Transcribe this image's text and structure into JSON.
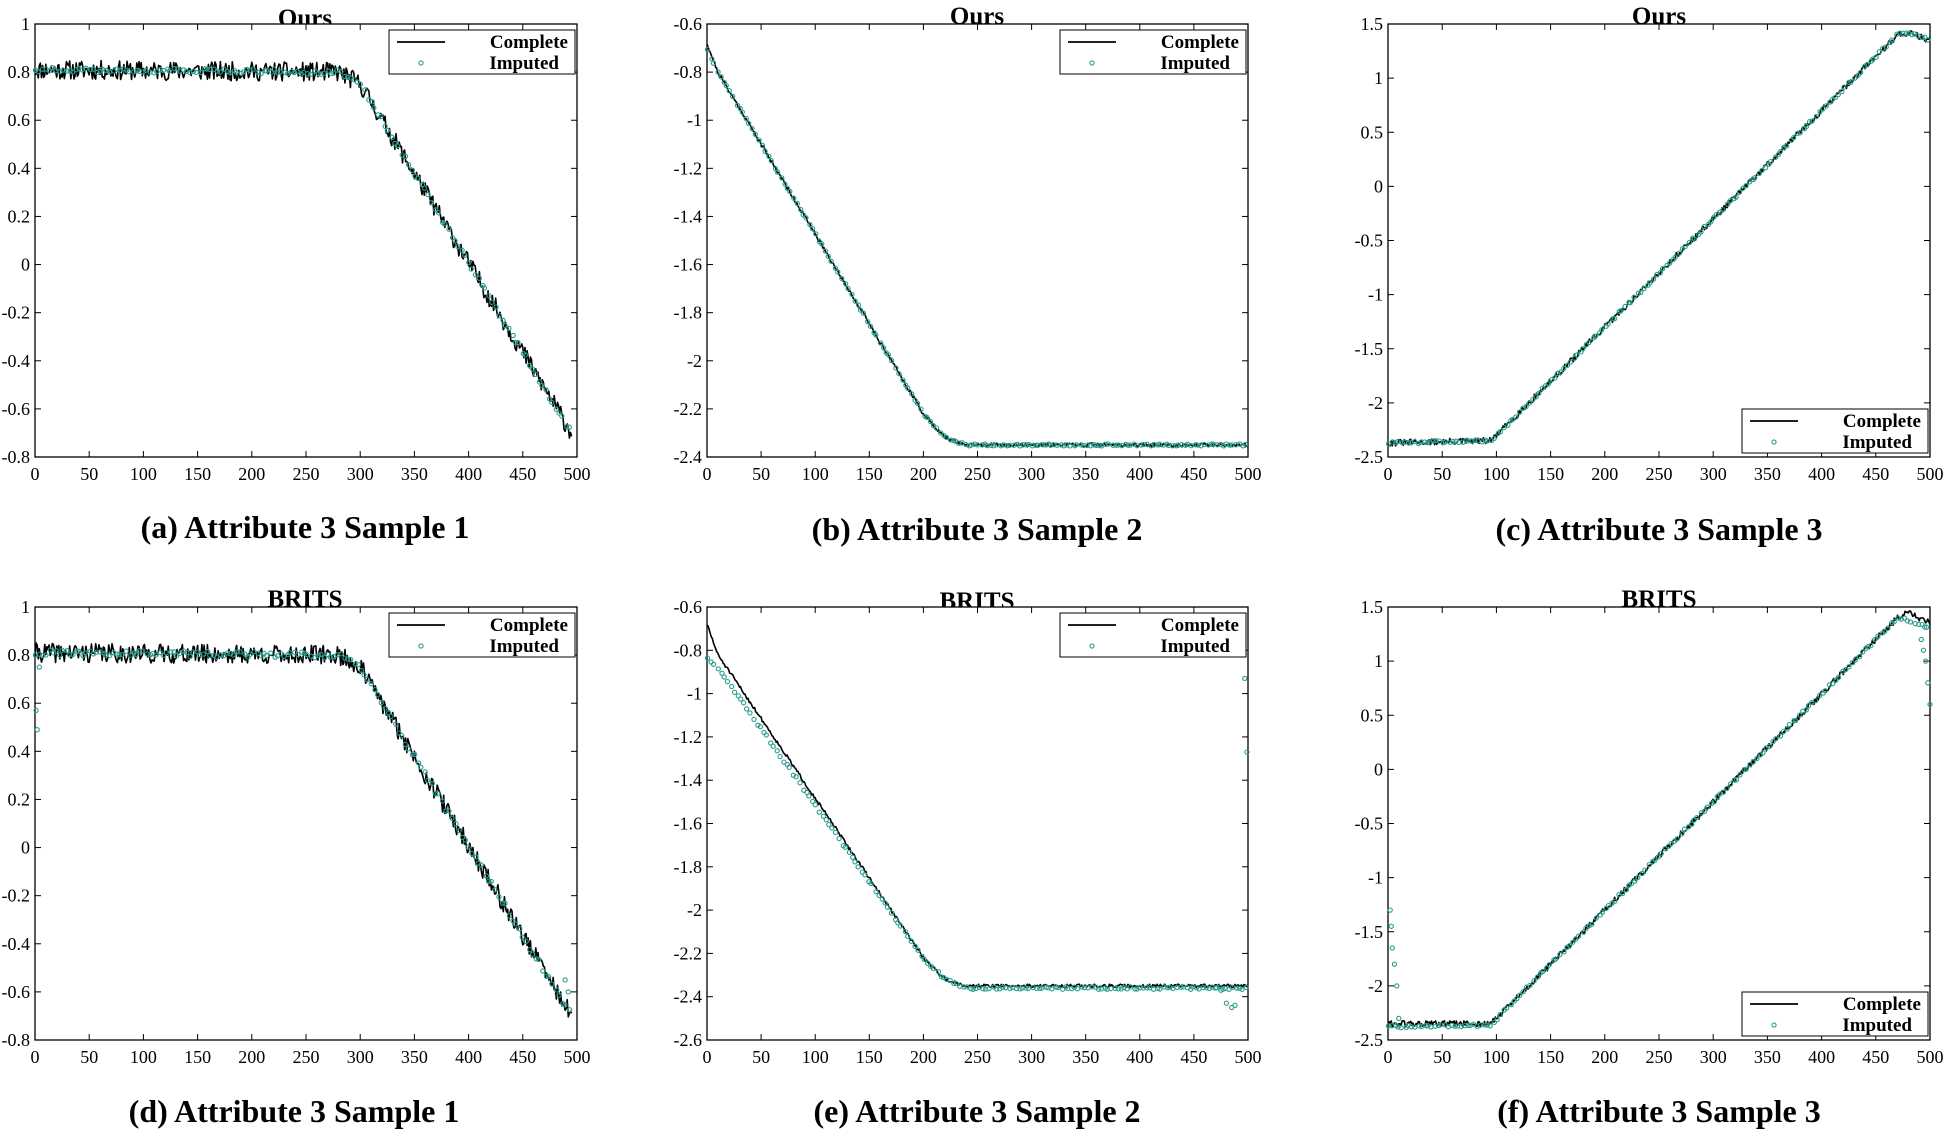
{
  "chart_data": [
    {
      "type": "line",
      "title": "Ours",
      "caption": "(a) Attribute 3 Sample 1",
      "xlim": [
        0,
        500
      ],
      "ylim": [
        -0.8,
        1
      ],
      "xticks": [
        0,
        50,
        100,
        150,
        200,
        250,
        300,
        350,
        400,
        450,
        500
      ],
      "xtick_labels": [
        "0",
        "50",
        "100",
        "150",
        "200",
        "250",
        "300",
        "350",
        "400",
        "450",
        "500"
      ],
      "yticks": [
        -0.8,
        -0.6,
        -0.4,
        -0.2,
        0,
        0.2,
        0.4,
        0.6,
        0.8,
        1
      ],
      "ytick_labels": [
        "-0.8",
        "-0.6",
        "-0.4",
        "-0.2",
        "0",
        "0.2",
        "0.4",
        "0.6",
        "0.8",
        "1"
      ],
      "legend": {
        "position": "top-right",
        "labels": [
          "Complete",
          "Imputed"
        ]
      },
      "series": [
        {
          "name": "Complete",
          "style": "line",
          "color": "#000000",
          "noise": 0.04,
          "seed": 11,
          "x": [
            0,
            280,
            300,
            495
          ],
          "y": [
            0.81,
            0.8,
            0.75,
            -0.7
          ]
        },
        {
          "name": "Imputed",
          "style": "markers",
          "color": "#2a9d8f",
          "noise": 0.01,
          "seed": 12,
          "n": 160,
          "x": [
            0,
            280,
            300,
            495
          ],
          "y": [
            0.81,
            0.8,
            0.75,
            -0.7
          ]
        }
      ]
    },
    {
      "type": "line",
      "title": "Ours",
      "caption": "(b) Attribute 3 Sample 2",
      "xlim": [
        0,
        500
      ],
      "ylim": [
        -2.4,
        -0.6
      ],
      "xticks": [
        0,
        50,
        100,
        150,
        200,
        250,
        300,
        350,
        400,
        450,
        500
      ],
      "xtick_labels": [
        "0",
        "50",
        "100",
        "150",
        "200",
        "250",
        "300",
        "350",
        "400",
        "450",
        "500"
      ],
      "yticks": [
        -2.4,
        -2.2,
        -2,
        -1.8,
        -1.6,
        -1.4,
        -1.2,
        -1,
        -0.8,
        -0.6
      ],
      "ytick_labels": [
        "-2.4",
        "-2.2",
        "-2",
        "-1.8",
        "-1.6",
        "-1.4",
        "-1.2",
        "-1",
        "-0.8",
        "-0.6"
      ],
      "legend": {
        "position": "top-right",
        "labels": [
          "Complete",
          "Imputed"
        ]
      },
      "series": [
        {
          "name": "Complete",
          "style": "line",
          "color": "#000000",
          "noise": 0.008,
          "seed": 21,
          "x": [
            0,
            10,
            200,
            220,
            240,
            500
          ],
          "y": [
            -0.68,
            -0.8,
            -2.22,
            -2.32,
            -2.35,
            -2.35
          ]
        },
        {
          "name": "Imputed",
          "style": "markers",
          "color": "#2a9d8f",
          "noise": 0.004,
          "seed": 22,
          "n": 170,
          "x": [
            0,
            10,
            200,
            220,
            240,
            500
          ],
          "y": [
            -0.7,
            -0.8,
            -2.22,
            -2.32,
            -2.35,
            -2.35
          ]
        }
      ]
    },
    {
      "type": "line",
      "title": "Ours",
      "caption": "(c) Attribute 3 Sample 3",
      "xlim": [
        0,
        500
      ],
      "ylim": [
        -2.5,
        1.5
      ],
      "xticks": [
        0,
        50,
        100,
        150,
        200,
        250,
        300,
        350,
        400,
        450,
        500
      ],
      "xtick_labels": [
        "0",
        "50",
        "100",
        "150",
        "200",
        "250",
        "300",
        "350",
        "400",
        "450",
        "500"
      ],
      "yticks": [
        -2.5,
        -2,
        -1.5,
        -1,
        -0.5,
        0,
        0.5,
        1,
        1.5
      ],
      "ytick_labels": [
        "-2.5",
        "-2",
        "-1.5",
        "-1",
        "-0.5",
        "0",
        "0.5",
        "1",
        "1.5"
      ],
      "legend": {
        "position": "bottom-right",
        "labels": [
          "Complete",
          "Imputed"
        ]
      },
      "series": [
        {
          "name": "Complete",
          "style": "line",
          "color": "#000000",
          "noise": 0.03,
          "seed": 31,
          "x": [
            0,
            95,
            110,
            470,
            480,
            500
          ],
          "y": [
            -2.37,
            -2.35,
            -2.2,
            1.4,
            1.42,
            1.35
          ]
        },
        {
          "name": "Imputed",
          "style": "markers",
          "color": "#2a9d8f",
          "noise": 0.012,
          "seed": 32,
          "n": 170,
          "x": [
            0,
            95,
            110,
            470,
            480,
            500
          ],
          "y": [
            -2.37,
            -2.35,
            -2.2,
            1.4,
            1.42,
            1.35
          ]
        }
      ]
    },
    {
      "type": "line",
      "title": "BRITS",
      "caption": "(d) Attribute 3 Sample 1",
      "xlim": [
        0,
        500
      ],
      "ylim": [
        -0.8,
        1
      ],
      "xticks": [
        0,
        50,
        100,
        150,
        200,
        250,
        300,
        350,
        400,
        450,
        500
      ],
      "xtick_labels": [
        "0",
        "50",
        "100",
        "150",
        "200",
        "250",
        "300",
        "350",
        "400",
        "450",
        "500"
      ],
      "yticks": [
        -0.8,
        -0.6,
        -0.4,
        -0.2,
        0,
        0.2,
        0.4,
        0.6,
        0.8,
        1
      ],
      "ytick_labels": [
        "-0.8",
        "-0.6",
        "-0.4",
        "-0.2",
        "0",
        "0.2",
        "0.4",
        "0.6",
        "0.8",
        "1"
      ],
      "legend": {
        "position": "top-right",
        "labels": [
          "Complete",
          "Imputed"
        ]
      },
      "series": [
        {
          "name": "Complete",
          "style": "line",
          "color": "#000000",
          "noise": 0.04,
          "seed": 41,
          "x": [
            0,
            280,
            300,
            495
          ],
          "y": [
            0.81,
            0.8,
            0.75,
            -0.7
          ]
        },
        {
          "name": "Imputed",
          "style": "markers",
          "color": "#2a9d8f",
          "noise": 0.012,
          "seed": 42,
          "n": 160,
          "x": [
            0,
            280,
            300,
            495
          ],
          "y": [
            0.81,
            0.8,
            0.75,
            -0.7
          ],
          "extra_x": [
            1,
            2,
            4,
            489,
            492
          ],
          "extra_y": [
            0.57,
            0.49,
            0.75,
            -0.55,
            -0.6
          ]
        }
      ]
    },
    {
      "type": "line",
      "title": "BRITS",
      "caption": "(e) Attribute 3 Sample 2",
      "xlim": [
        0,
        500
      ],
      "ylim": [
        -2.6,
        -0.6
      ],
      "xticks": [
        0,
        50,
        100,
        150,
        200,
        250,
        300,
        350,
        400,
        450,
        500
      ],
      "xtick_labels": [
        "0",
        "50",
        "100",
        "150",
        "200",
        "250",
        "300",
        "350",
        "400",
        "450",
        "500"
      ],
      "yticks": [
        -2.6,
        -2.4,
        -2.2,
        -2,
        -1.8,
        -1.6,
        -1.4,
        -1.2,
        -1,
        -0.8,
        -0.6
      ],
      "ytick_labels": [
        "-2.6",
        "-2.4",
        "-2.2",
        "-2",
        "-1.8",
        "-1.6",
        "-1.4",
        "-1.2",
        "-1",
        "-0.8",
        "-0.6"
      ],
      "legend": {
        "position": "top-right",
        "labels": [
          "Complete",
          "Imputed"
        ]
      },
      "series": [
        {
          "name": "Complete",
          "style": "line",
          "color": "#000000",
          "noise": 0.008,
          "seed": 51,
          "x": [
            0,
            10,
            200,
            220,
            240,
            500
          ],
          "y": [
            -0.68,
            -0.82,
            -2.22,
            -2.32,
            -2.35,
            -2.35
          ]
        },
        {
          "name": "Imputed",
          "style": "markers",
          "color": "#2a9d8f",
          "noise": 0.006,
          "seed": 52,
          "n": 165,
          "x": [
            0,
            10,
            200,
            220,
            240,
            500
          ],
          "y": [
            -0.84,
            -0.88,
            -2.22,
            -2.32,
            -2.36,
            -2.36
          ],
          "extra_x": [
            470,
            475,
            480,
            485,
            488,
            497,
            499
          ],
          "extra_y": [
            -2.36,
            -2.37,
            -2.43,
            -2.45,
            -2.44,
            -0.93,
            -1.27
          ]
        }
      ]
    },
    {
      "type": "line",
      "title": "BRITS",
      "caption": "(f) Attribute 3 Sample 3",
      "xlim": [
        0,
        500
      ],
      "ylim": [
        -2.5,
        1.5
      ],
      "xticks": [
        0,
        50,
        100,
        150,
        200,
        250,
        300,
        350,
        400,
        450,
        500
      ],
      "xtick_labels": [
        "0",
        "50",
        "100",
        "150",
        "200",
        "250",
        "300",
        "350",
        "400",
        "450",
        "500"
      ],
      "yticks": [
        -2.5,
        -2,
        -1.5,
        -1,
        -0.5,
        0,
        0.5,
        1,
        1.5
      ],
      "ytick_labels": [
        "-2.5",
        "-2",
        "-1.5",
        "-1",
        "-0.5",
        "0",
        "0.5",
        "1",
        "1.5"
      ],
      "legend": {
        "position": "bottom-right",
        "labels": [
          "Complete",
          "Imputed"
        ]
      },
      "series": [
        {
          "name": "Complete",
          "style": "line",
          "color": "#000000",
          "noise": 0.03,
          "seed": 61,
          "x": [
            0,
            95,
            110,
            470,
            480,
            500
          ],
          "y": [
            -2.35,
            -2.35,
            -2.2,
            1.4,
            1.45,
            1.35
          ]
        },
        {
          "name": "Imputed",
          "style": "markers",
          "color": "#2a9d8f",
          "noise": 0.012,
          "seed": 62,
          "n": 165,
          "x": [
            0,
            95,
            110,
            470,
            480,
            500
          ],
          "y": [
            -2.38,
            -2.36,
            -2.2,
            1.4,
            1.38,
            1.3
          ],
          "extra_x": [
            2,
            3,
            4,
            6,
            8,
            10,
            492,
            494,
            496,
            498,
            500
          ],
          "extra_y": [
            -1.3,
            -1.45,
            -1.65,
            -1.8,
            -2.0,
            -2.3,
            1.2,
            1.1,
            1.0,
            0.8,
            0.6
          ]
        }
      ]
    }
  ]
}
